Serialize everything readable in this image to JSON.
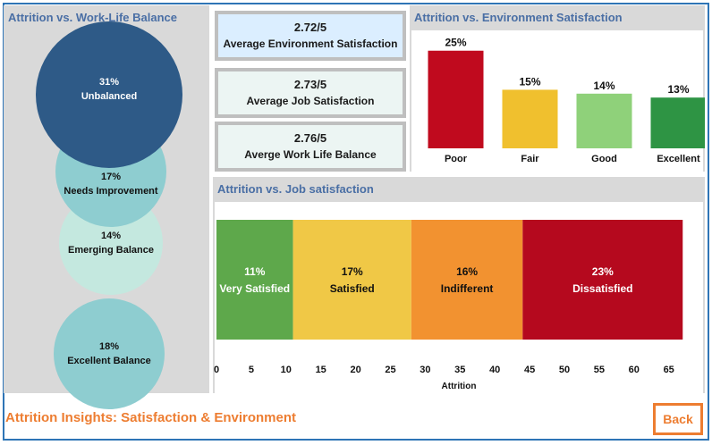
{
  "colors": {
    "frame_border": "#2e75b6",
    "panel_bg": "#d9d9d9",
    "title_color": "#4a6fa5",
    "accent_orange": "#ed7d31"
  },
  "work_life": {
    "title": "Attrition vs. Work-Life Balance",
    "bubbles": [
      {
        "pct": "31%",
        "label": "Unbalanced",
        "color": "#2e5a87",
        "text_color": "#ffffff"
      },
      {
        "pct": "17%",
        "label": "Needs Improvement",
        "color": "#8ecdd0",
        "text_color": "#111111"
      },
      {
        "pct": "14%",
        "label": "Emerging Balance",
        "color": "#c4e8df",
        "text_color": "#111111"
      },
      {
        "pct": "18%",
        "label": "Excellent Balance",
        "color": "#8ecdd0",
        "text_color": "#111111"
      }
    ]
  },
  "kpis": [
    {
      "value": "2.72/5",
      "label": "Average Environment Satisfaction",
      "bg": "#dbeeff"
    },
    {
      "value": "2.73/5",
      "label": "Average Job Satisfaction",
      "bg": "#ecf5f3"
    },
    {
      "value": "2.76/5",
      "label": "Averge Work Life Balance",
      "bg": "#ecf5f3"
    }
  ],
  "chart_data": [
    {
      "type": "bar",
      "title": "Attrition vs. Environment Satisfaction",
      "categories": [
        "Poor",
        "Fair",
        "Good",
        "Excellent"
      ],
      "values": [
        25,
        15,
        14,
        13
      ],
      "value_labels": [
        "25%",
        "15%",
        "14%",
        "13%"
      ],
      "colors": [
        "#c00a1e",
        "#f0c02e",
        "#8fd17a",
        "#2e9444"
      ],
      "ylim": [
        0,
        27
      ],
      "grid": false
    },
    {
      "type": "bar",
      "orientation": "horizontal-stacked",
      "title": "Attrition vs. Job satisfaction",
      "xlabel": "Attrition",
      "xlim": [
        0,
        70
      ],
      "xticks": [
        0,
        5,
        10,
        15,
        20,
        25,
        30,
        35,
        40,
        45,
        50,
        55,
        60,
        65
      ],
      "segments": [
        {
          "name": "Very Satisfied",
          "pct": "11%",
          "value": 11,
          "color": "#5ea84b"
        },
        {
          "name": "Satisfied",
          "pct": "17%",
          "value": 17,
          "color": "#f0c846"
        },
        {
          "name": "Indifferent",
          "pct": "16%",
          "value": 16,
          "color": "#f29230"
        },
        {
          "name": "Dissatisfied",
          "pct": "23%",
          "value": 23,
          "color": "#b5091e"
        }
      ],
      "grid": false
    }
  ],
  "footer": {
    "title": "Attrition Insights: Satisfaction & Environment",
    "back_label": "Back"
  }
}
